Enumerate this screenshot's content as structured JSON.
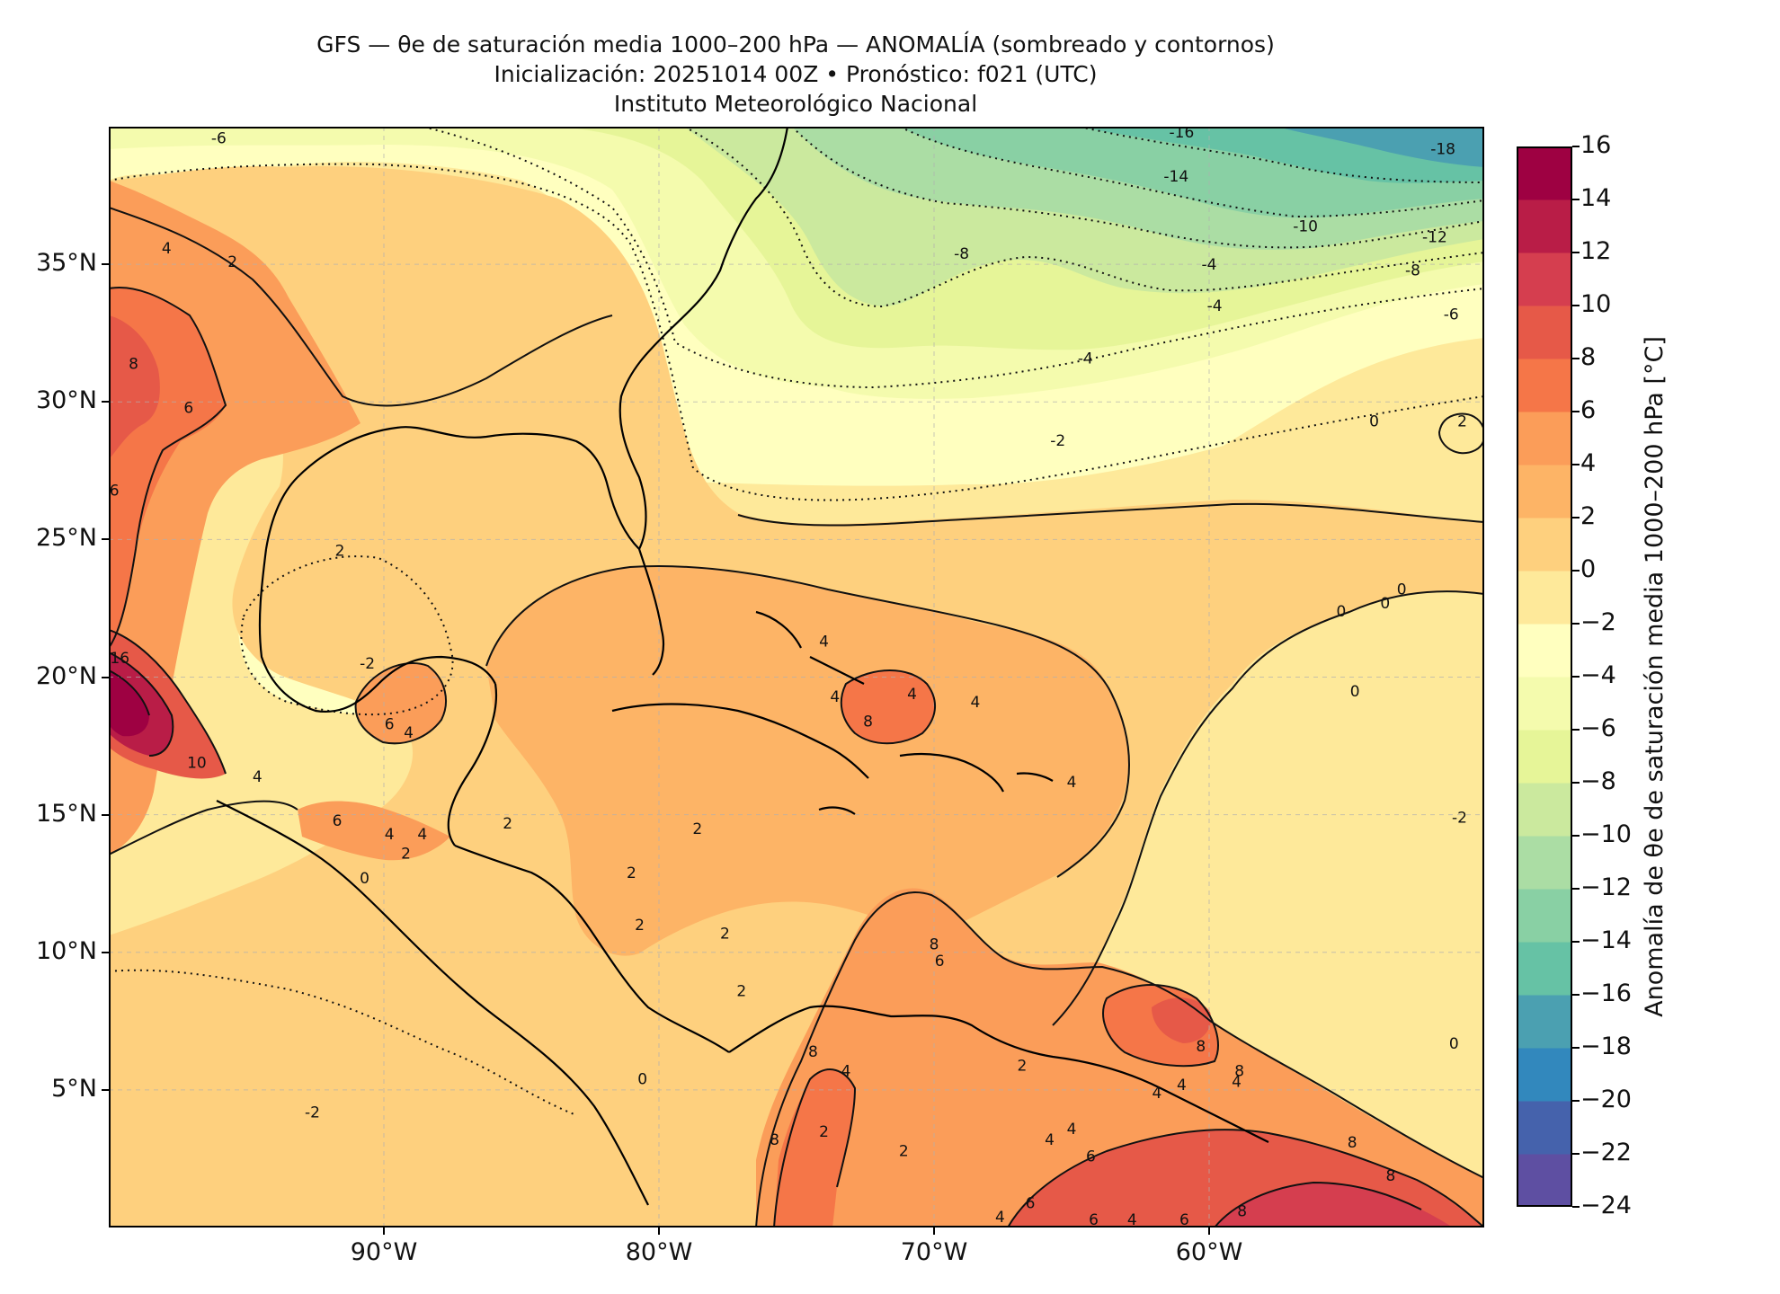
{
  "titles": {
    "line1": "GFS — θe de saturación media 1000–200 hPa — ANOMALÍA (sombreado y contornos)",
    "line2": "Inicialización: 20251014 00Z   •   Pronóstico: f021 (UTC)",
    "line3": "Instituto Meteorológico Nacional"
  },
  "axes": {
    "lon_range": [
      -100,
      -50
    ],
    "lat_range": [
      0,
      40
    ],
    "lon_ticks": [
      {
        "value": -90,
        "label": "90°W"
      },
      {
        "value": -80,
        "label": "80°W"
      },
      {
        "value": -70,
        "label": "70°W"
      },
      {
        "value": -60,
        "label": "60°W"
      }
    ],
    "lat_ticks": [
      {
        "value": 35,
        "label": "35°N"
      },
      {
        "value": 30,
        "label": "30°N"
      },
      {
        "value": 25,
        "label": "25°N"
      },
      {
        "value": 20,
        "label": "20°N"
      },
      {
        "value": 15,
        "label": "15°N"
      },
      {
        "value": 10,
        "label": "10°N"
      },
      {
        "value": 5,
        "label": "5°N"
      }
    ],
    "grid": true
  },
  "colorbar": {
    "label": "Anomalía de θe de saturación media 1000–200 hPa [°C]",
    "min": -24,
    "max": 16,
    "step": 2,
    "tick_labels": [
      "16",
      "14",
      "12",
      "10",
      "8",
      "6",
      "4",
      "2",
      "0",
      "−2",
      "−4",
      "−6",
      "−8",
      "−10",
      "−12",
      "−14",
      "−16",
      "−18",
      "−20",
      "−22",
      "−24"
    ],
    "colors": [
      "#5e4fa2",
      "#4562ac",
      "#3288bd",
      "#4ba0b1",
      "#66c2a5",
      "#89d0a4",
      "#abdda4",
      "#cbe99e",
      "#e6f598",
      "#f4fbad",
      "#ffffbf",
      "#fee99a",
      "#fed07e",
      "#fdb466",
      "#fb9d59",
      "#f57648",
      "#e65948",
      "#d53e4f",
      "#b91d47",
      "#9e0142"
    ]
  },
  "chart_data": {
    "type": "heatmap",
    "variable": "θe de saturación media 1000–200 hPa — ANOMALÍA",
    "units": "°C",
    "contour_labels": [
      {
        "lon": -96,
        "lat": 39.6,
        "text": "-6"
      },
      {
        "lon": -61,
        "lat": 39.8,
        "text": "-16"
      },
      {
        "lon": -51.5,
        "lat": 39.2,
        "text": "-18"
      },
      {
        "lon": -61.2,
        "lat": 38.2,
        "text": "-14"
      },
      {
        "lon": -56.5,
        "lat": 36.4,
        "text": "-10"
      },
      {
        "lon": -51.8,
        "lat": 36.0,
        "text": "-12"
      },
      {
        "lon": -69.0,
        "lat": 35.4,
        "text": "-8"
      },
      {
        "lon": -60.0,
        "lat": 35.0,
        "text": "-4"
      },
      {
        "lon": -52.6,
        "lat": 34.8,
        "text": "-8"
      },
      {
        "lon": -59.8,
        "lat": 33.5,
        "text": "-4"
      },
      {
        "lon": -51.2,
        "lat": 33.2,
        "text": "-6"
      },
      {
        "lon": -64.5,
        "lat": 31.6,
        "text": "-4"
      },
      {
        "lon": -65.5,
        "lat": 28.6,
        "text": "-2"
      },
      {
        "lon": -54.0,
        "lat": 29.3,
        "text": "0"
      },
      {
        "lon": -50.8,
        "lat": 29.3,
        "text": "2"
      },
      {
        "lon": -97.9,
        "lat": 35.6,
        "text": "4"
      },
      {
        "lon": -95.5,
        "lat": 35.1,
        "text": "2"
      },
      {
        "lon": -99.1,
        "lat": 31.4,
        "text": "8"
      },
      {
        "lon": -97.1,
        "lat": 29.8,
        "text": "6"
      },
      {
        "lon": -99.8,
        "lat": 26.8,
        "text": "6"
      },
      {
        "lon": -91.6,
        "lat": 24.6,
        "text": "2"
      },
      {
        "lon": -90.6,
        "lat": 20.5,
        "text": "-2"
      },
      {
        "lon": -99.6,
        "lat": 20.7,
        "text": "16"
      },
      {
        "lon": -96.8,
        "lat": 16.9,
        "text": "10"
      },
      {
        "lon": -94.6,
        "lat": 16.4,
        "text": "4"
      },
      {
        "lon": -89.8,
        "lat": 18.3,
        "text": "6"
      },
      {
        "lon": -89.1,
        "lat": 18.0,
        "text": "4"
      },
      {
        "lon": -91.7,
        "lat": 14.8,
        "text": "6"
      },
      {
        "lon": -89.8,
        "lat": 14.3,
        "text": "4"
      },
      {
        "lon": -88.6,
        "lat": 14.3,
        "text": "4"
      },
      {
        "lon": -89.2,
        "lat": 13.6,
        "text": "2"
      },
      {
        "lon": -85.5,
        "lat": 14.7,
        "text": "2"
      },
      {
        "lon": -90.7,
        "lat": 12.7,
        "text": "0"
      },
      {
        "lon": -92.6,
        "lat": 4.2,
        "text": "-2"
      },
      {
        "lon": -80.6,
        "lat": 5.4,
        "text": "0"
      },
      {
        "lon": -78.6,
        "lat": 14.5,
        "text": "2"
      },
      {
        "lon": -81.0,
        "lat": 12.9,
        "text": "2"
      },
      {
        "lon": -80.7,
        "lat": 11.0,
        "text": "2"
      },
      {
        "lon": -77.6,
        "lat": 10.7,
        "text": "2"
      },
      {
        "lon": -77.0,
        "lat": 8.6,
        "text": "2"
      },
      {
        "lon": -74.0,
        "lat": 21.3,
        "text": "4"
      },
      {
        "lon": -73.6,
        "lat": 19.3,
        "text": "4"
      },
      {
        "lon": -72.4,
        "lat": 18.4,
        "text": "8"
      },
      {
        "lon": -70.8,
        "lat": 19.4,
        "text": "4"
      },
      {
        "lon": -68.5,
        "lat": 19.1,
        "text": "4"
      },
      {
        "lon": -55.2,
        "lat": 22.4,
        "text": "0"
      },
      {
        "lon": -53.6,
        "lat": 22.7,
        "text": "0"
      },
      {
        "lon": -53.0,
        "lat": 23.2,
        "text": "0"
      },
      {
        "lon": -54.7,
        "lat": 19.5,
        "text": "0"
      },
      {
        "lon": -50.9,
        "lat": 14.9,
        "text": "-2"
      },
      {
        "lon": -65.0,
        "lat": 16.2,
        "text": "4"
      },
      {
        "lon": -74.4,
        "lat": 6.4,
        "text": "8"
      },
      {
        "lon": -73.2,
        "lat": 5.7,
        "text": "4"
      },
      {
        "lon": -74.0,
        "lat": 3.5,
        "text": "2"
      },
      {
        "lon": -75.8,
        "lat": 3.2,
        "text": "8"
      },
      {
        "lon": -71.1,
        "lat": 2.8,
        "text": "2"
      },
      {
        "lon": -70.0,
        "lat": 10.3,
        "text": "8"
      },
      {
        "lon": -69.8,
        "lat": 9.7,
        "text": "6"
      },
      {
        "lon": -66.8,
        "lat": 5.9,
        "text": "2"
      },
      {
        "lon": -65.8,
        "lat": 3.2,
        "text": "4"
      },
      {
        "lon": -65.0,
        "lat": 3.6,
        "text": "4"
      },
      {
        "lon": -64.3,
        "lat": 2.6,
        "text": "6"
      },
      {
        "lon": -61.9,
        "lat": 4.9,
        "text": "4"
      },
      {
        "lon": -61.0,
        "lat": 5.2,
        "text": "4"
      },
      {
        "lon": -60.3,
        "lat": 6.6,
        "text": "8"
      },
      {
        "lon": -58.9,
        "lat": 5.7,
        "text": "8"
      },
      {
        "lon": -59.0,
        "lat": 5.3,
        "text": "4"
      },
      {
        "lon": -51.1,
        "lat": 6.7,
        "text": "0"
      },
      {
        "lon": -54.8,
        "lat": 3.1,
        "text": "8"
      },
      {
        "lon": -53.4,
        "lat": 1.9,
        "text": "8"
      },
      {
        "lon": -58.8,
        "lat": 0.6,
        "text": "8"
      },
      {
        "lon": -60.9,
        "lat": 0.3,
        "text": "6"
      },
      {
        "lon": -62.8,
        "lat": 0.3,
        "text": "4"
      },
      {
        "lon": -64.2,
        "lat": 0.3,
        "text": "6"
      },
      {
        "lon": -66.5,
        "lat": 0.9,
        "text": "6"
      },
      {
        "lon": -67.6,
        "lat": 0.4,
        "text": "4"
      }
    ]
  }
}
